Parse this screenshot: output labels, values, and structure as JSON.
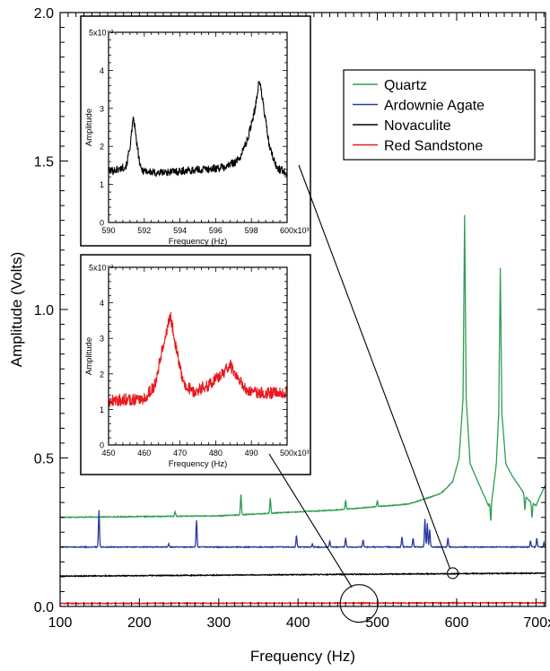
{
  "chart_data": [
    {
      "type": "line",
      "xlabel": "Frequency (Hz)",
      "ylabel": "Amplitude (Volts)",
      "xlim": [
        100000,
        712000
      ],
      "ylim": [
        0.0,
        2.0
      ],
      "xticks": [
        100000,
        200000,
        300000,
        400000,
        500000,
        600000,
        700000
      ],
      "xtick_labels": [
        "100",
        "200",
        "300",
        "400",
        "500",
        "600",
        "700x10³"
      ],
      "yticks": [
        0.0,
        0.5,
        1.0,
        1.5,
        2.0
      ],
      "ytick_labels": [
        "0.0",
        "0.5",
        "1.0",
        "1.5",
        "2.0"
      ],
      "legend": "top-right",
      "series": [
        {
          "name": "Quartz",
          "color": "#2e9e4f",
          "baseline": [
            [
              100000,
              0.3
            ],
            [
              300000,
              0.305
            ],
            [
              450000,
              0.325
            ],
            [
              540000,
              0.345
            ],
            [
              580000,
              0.38
            ],
            [
              595000,
              0.42
            ],
            [
              603000,
              0.5
            ],
            [
              608000,
              0.7
            ],
            [
              610000,
              1.32
            ],
            [
              612000,
              0.7
            ],
            [
              617000,
              0.48
            ],
            [
              630000,
              0.4
            ],
            [
              640000,
              0.34
            ],
            [
              645000,
              0.37
            ],
            [
              650000,
              0.48
            ],
            [
              653000,
              0.65
            ],
            [
              655000,
              1.14
            ],
            [
              657000,
              0.65
            ],
            [
              662000,
              0.48
            ],
            [
              670000,
              0.44
            ],
            [
              680000,
              0.4
            ],
            [
              690000,
              0.36
            ],
            [
              700000,
              0.34
            ],
            [
              712000,
              0.41
            ]
          ],
          "peaks": [
            [
              245000,
              0.015
            ],
            [
              328000,
              0.07
            ],
            [
              365000,
              0.05
            ],
            [
              460000,
              0.03
            ],
            [
              500000,
              0.02
            ],
            [
              643000,
              -0.07
            ],
            [
              686000,
              -0.05
            ],
            [
              695000,
              -0.05
            ]
          ]
        },
        {
          "name": "Ardownie Agate",
          "color": "#2b3aa0",
          "baseline": [
            [
              100000,
              0.2
            ],
            [
              712000,
              0.2
            ]
          ],
          "peaks": [
            [
              149000,
              0.125
            ],
            [
              237000,
              0.01
            ],
            [
              272000,
              0.09
            ],
            [
              398000,
              0.04
            ],
            [
              418000,
              0.01
            ],
            [
              440000,
              0.02
            ],
            [
              460000,
              0.03
            ],
            [
              482000,
              0.025
            ],
            [
              531000,
              0.035
            ],
            [
              545000,
              0.03
            ],
            [
              560000,
              0.095
            ],
            [
              563000,
              0.08
            ],
            [
              566000,
              0.06
            ],
            [
              589000,
              0.03
            ],
            [
              693000,
              0.02
            ],
            [
              701000,
              0.03
            ],
            [
              710000,
              0.015
            ]
          ]
        },
        {
          "name": "Novaculite",
          "color": "#000000",
          "baseline": [
            [
              100000,
              0.102
            ],
            [
              712000,
              0.112
            ]
          ],
          "peaks": []
        },
        {
          "name": "Red Sandstone",
          "color": "#e8191e",
          "baseline": [
            [
              100000,
              0.01
            ],
            [
              712000,
              0.012
            ]
          ],
          "peaks": []
        }
      ]
    },
    {
      "type": "line",
      "inset": "upper",
      "xlabel": "Frequency (Hz)",
      "ylabel": "Amplitude",
      "xlim": [
        590000,
        600000
      ],
      "ylim": [
        0,
        0.005
      ],
      "xticks": [
        590000,
        592000,
        594000,
        596000,
        598000,
        600000
      ],
      "xtick_labels": [
        "590",
        "592",
        "594",
        "596",
        "598",
        "600x10³"
      ],
      "yticks": [
        0,
        0.001,
        0.002,
        0.003,
        0.004,
        0.005
      ],
      "ytick_labels": [
        "0",
        "1",
        "2",
        "3",
        "4",
        "5x10⁻³"
      ],
      "series": [
        {
          "name": "Novaculite",
          "color": "#000000",
          "points": [
            [
              590000,
              0.00135
            ],
            [
              590600,
              0.0014
            ],
            [
              591000,
              0.0015
            ],
            [
              591200,
              0.002
            ],
            [
              591400,
              0.00275
            ],
            [
              591600,
              0.002
            ],
            [
              591800,
              0.0014
            ],
            [
              592500,
              0.0013
            ],
            [
              594000,
              0.00135
            ],
            [
              595500,
              0.0014
            ],
            [
              596500,
              0.00145
            ],
            [
              597300,
              0.00165
            ],
            [
              597800,
              0.0022
            ],
            [
              598200,
              0.003
            ],
            [
              598450,
              0.00375
            ],
            [
              598700,
              0.003
            ],
            [
              599000,
              0.002
            ],
            [
              599400,
              0.00145
            ],
            [
              600000,
              0.0013
            ]
          ]
        }
      ]
    },
    {
      "type": "line",
      "inset": "lower",
      "xlabel": "Frequency (Hz)",
      "ylabel": "Amplitude",
      "xlim": [
        450000,
        500000
      ],
      "ylim": [
        0,
        0.005
      ],
      "xticks": [
        450000,
        460000,
        470000,
        480000,
        490000,
        500000
      ],
      "xtick_labels": [
        "450",
        "460",
        "470",
        "480",
        "490",
        "500x10³"
      ],
      "yticks": [
        0,
        0.001,
        0.002,
        0.003,
        0.004,
        0.005
      ],
      "ytick_labels": [
        "0",
        "1",
        "2",
        "3",
        "4",
        "5x10⁻³"
      ],
      "series": [
        {
          "name": "Red Sandstone",
          "color": "#e8191e",
          "points": [
            [
              450000,
              0.00125
            ],
            [
              460000,
              0.0013
            ],
            [
              463000,
              0.0017
            ],
            [
              465000,
              0.0027
            ],
            [
              467300,
              0.00365
            ],
            [
              469000,
              0.0027
            ],
            [
              471000,
              0.0017
            ],
            [
              474000,
              0.0015
            ],
            [
              478000,
              0.0017
            ],
            [
              482000,
              0.002
            ],
            [
              484000,
              0.00225
            ],
            [
              486000,
              0.0019
            ],
            [
              489000,
              0.0015
            ],
            [
              495000,
              0.00145
            ],
            [
              500000,
              0.0015
            ]
          ]
        }
      ]
    }
  ]
}
